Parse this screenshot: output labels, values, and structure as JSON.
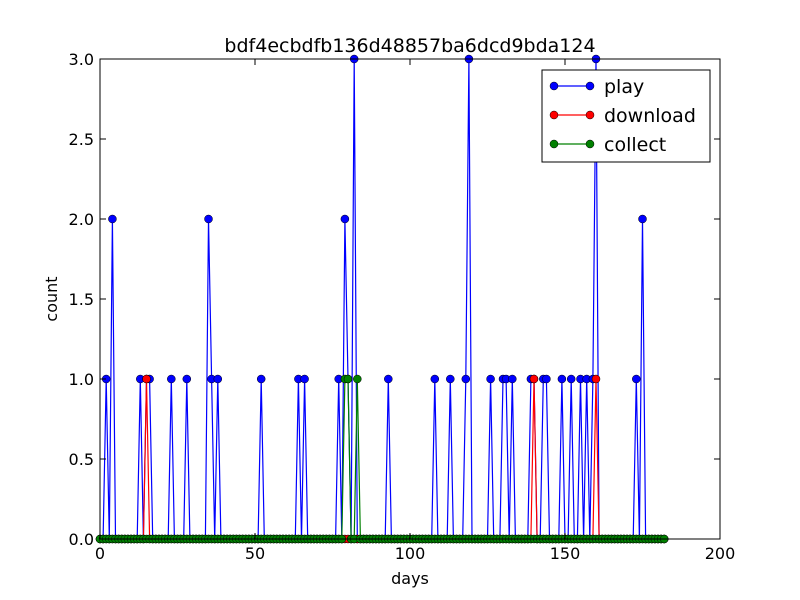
{
  "chart_data": {
    "type": "line",
    "title": "bdf4ecbdfb136d48857ba6dcd9bda124",
    "xlabel": "days",
    "ylabel": "count",
    "xlim": [
      0,
      200
    ],
    "ylim": [
      0,
      3
    ],
    "xticks": [
      0,
      50,
      100,
      150,
      200
    ],
    "xtick_labels": [
      "0",
      "50",
      "100",
      "150",
      "200"
    ],
    "yticks": [
      0,
      0.5,
      1,
      1.5,
      2,
      2.5,
      3
    ],
    "ytick_labels": [
      "0.0",
      "0.5",
      "1.0",
      "1.5",
      "2.0",
      "2.5",
      "3.0"
    ],
    "x_start": 0,
    "x_end": 182,
    "legend_position": "top-right",
    "grid": false,
    "series": [
      {
        "name": "play",
        "color": "#0000ff",
        "nonzero": [
          [
            2,
            1
          ],
          [
            4,
            2
          ],
          [
            13,
            1
          ],
          [
            15,
            1
          ],
          [
            16,
            1
          ],
          [
            23,
            1
          ],
          [
            28,
            1
          ],
          [
            35,
            2
          ],
          [
            36,
            1
          ],
          [
            38,
            1
          ],
          [
            52,
            1
          ],
          [
            64,
            1
          ],
          [
            66,
            1
          ],
          [
            77,
            1
          ],
          [
            79,
            2
          ],
          [
            80,
            1
          ],
          [
            82,
            3
          ],
          [
            93,
            1
          ],
          [
            108,
            1
          ],
          [
            113,
            1
          ],
          [
            118,
            1
          ],
          [
            119,
            3
          ],
          [
            126,
            1
          ],
          [
            130,
            1
          ],
          [
            131,
            1
          ],
          [
            133,
            1
          ],
          [
            139,
            1
          ],
          [
            140,
            1
          ],
          [
            143,
            1
          ],
          [
            144,
            1
          ],
          [
            149,
            1
          ],
          [
            152,
            1
          ],
          [
            155,
            1
          ],
          [
            157,
            1
          ],
          [
            159,
            1
          ],
          [
            160,
            3
          ],
          [
            173,
            1
          ],
          [
            175,
            2
          ]
        ]
      },
      {
        "name": "download",
        "color": "#ff0000",
        "nonzero": [
          [
            15,
            1
          ],
          [
            140,
            1
          ],
          [
            160,
            1
          ]
        ]
      },
      {
        "name": "collect",
        "color": "#008000",
        "nonzero": [
          [
            79,
            1
          ],
          [
            80,
            1
          ],
          [
            83,
            1
          ]
        ]
      }
    ]
  }
}
